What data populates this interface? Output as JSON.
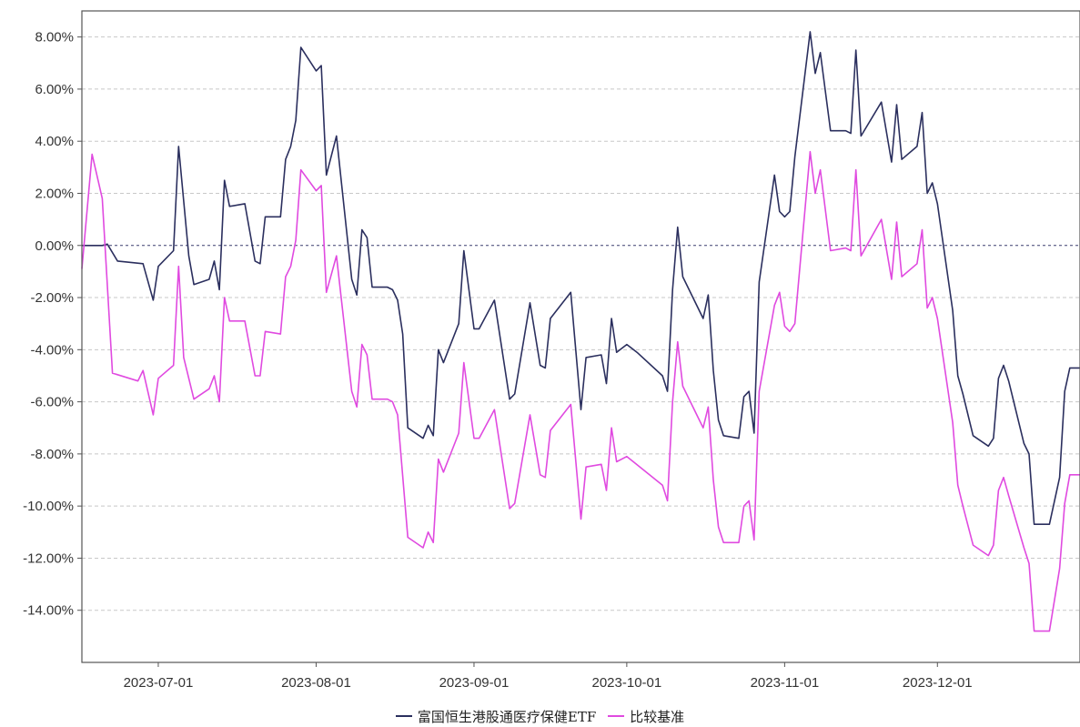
{
  "chart_data": {
    "type": "line",
    "title": "",
    "xlabel": "",
    "ylabel": "",
    "x_range": [
      "2023-06-16",
      "2023-12-29"
    ],
    "ylim": [
      -16,
      9
    ],
    "ytick_values": [
      8,
      6,
      4,
      2,
      0,
      -2,
      -4,
      -6,
      -8,
      -10,
      -12,
      -14
    ],
    "ytick_labels": [
      "8.00%",
      "6.00%",
      "4.00%",
      "2.00%",
      "0.00%",
      "-2.00%",
      "-4.00%",
      "-6.00%",
      "-8.00%",
      "-10.00%",
      "-12.00%",
      "-14.00%"
    ],
    "xtick_labels": [
      "2023-07-01",
      "2023-08-01",
      "2023-09-01",
      "2023-10-01",
      "2023-11-01",
      "2023-12-01"
    ],
    "grid": true,
    "legend_position": "bottom-center",
    "series": [
      {
        "name": "富国恒生港股通医疗保健ETF",
        "color": "#2b2f5e",
        "points": [
          [
            "2023-06-16",
            0.0
          ],
          [
            "2023-06-20",
            0.0
          ],
          [
            "2023-06-21",
            0.05
          ],
          [
            "2023-06-23",
            -0.6
          ],
          [
            "2023-06-28",
            -0.7
          ],
          [
            "2023-06-30",
            -2.1
          ],
          [
            "2023-07-01",
            -0.8
          ],
          [
            "2023-07-04",
            -0.2
          ],
          [
            "2023-07-05",
            3.8
          ],
          [
            "2023-07-07",
            -0.4
          ],
          [
            "2023-07-08",
            -1.5
          ],
          [
            "2023-07-11",
            -1.3
          ],
          [
            "2023-07-12",
            -0.6
          ],
          [
            "2023-07-13",
            -1.7
          ],
          [
            "2023-07-14",
            2.5
          ],
          [
            "2023-07-15",
            1.5
          ],
          [
            "2023-07-18",
            1.6
          ],
          [
            "2023-07-20",
            -0.6
          ],
          [
            "2023-07-21",
            -0.7
          ],
          [
            "2023-07-22",
            1.1
          ],
          [
            "2023-07-25",
            1.1
          ],
          [
            "2023-07-26",
            3.3
          ],
          [
            "2023-07-27",
            3.8
          ],
          [
            "2023-07-28",
            4.8
          ],
          [
            "2023-07-29",
            7.6
          ],
          [
            "2023-08-01",
            6.7
          ],
          [
            "2023-08-02",
            6.9
          ],
          [
            "2023-08-03",
            2.7
          ],
          [
            "2023-08-05",
            4.2
          ],
          [
            "2023-08-08",
            -1.3
          ],
          [
            "2023-08-09",
            -1.9
          ],
          [
            "2023-08-10",
            0.6
          ],
          [
            "2023-08-11",
            0.3
          ],
          [
            "2023-08-12",
            -1.6
          ],
          [
            "2023-08-15",
            -1.6
          ],
          [
            "2023-08-16",
            -1.7
          ],
          [
            "2023-08-17",
            -2.1
          ],
          [
            "2023-08-18",
            -3.4
          ],
          [
            "2023-08-19",
            -7.0
          ],
          [
            "2023-08-22",
            -7.4
          ],
          [
            "2023-08-23",
            -6.9
          ],
          [
            "2023-08-24",
            -7.3
          ],
          [
            "2023-08-25",
            -4.0
          ],
          [
            "2023-08-26",
            -4.5
          ],
          [
            "2023-08-29",
            -3.0
          ],
          [
            "2023-08-30",
            -0.2
          ],
          [
            "2023-09-01",
            -3.2
          ],
          [
            "2023-09-02",
            -3.2
          ],
          [
            "2023-09-05",
            -2.1
          ],
          [
            "2023-09-08",
            -5.9
          ],
          [
            "2023-09-09",
            -5.7
          ],
          [
            "2023-09-12",
            -2.2
          ],
          [
            "2023-09-14",
            -4.6
          ],
          [
            "2023-09-15",
            -4.7
          ],
          [
            "2023-09-16",
            -2.8
          ],
          [
            "2023-09-20",
            -1.8
          ],
          [
            "2023-09-22",
            -6.3
          ],
          [
            "2023-09-23",
            -4.3
          ],
          [
            "2023-09-26",
            -4.2
          ],
          [
            "2023-09-27",
            -5.3
          ],
          [
            "2023-09-28",
            -2.8
          ],
          [
            "2023-09-29",
            -4.1
          ],
          [
            "2023-10-01",
            -3.8
          ],
          [
            "2023-10-03",
            -4.1
          ],
          [
            "2023-10-08",
            -5.0
          ],
          [
            "2023-10-09",
            -5.6
          ],
          [
            "2023-10-10",
            -1.7
          ],
          [
            "2023-10-11",
            0.7
          ],
          [
            "2023-10-12",
            -1.2
          ],
          [
            "2023-10-16",
            -2.8
          ],
          [
            "2023-10-17",
            -1.9
          ],
          [
            "2023-10-18",
            -4.8
          ],
          [
            "2023-10-19",
            -6.7
          ],
          [
            "2023-10-20",
            -7.3
          ],
          [
            "2023-10-23",
            -7.4
          ],
          [
            "2023-10-24",
            -5.8
          ],
          [
            "2023-10-25",
            -5.6
          ],
          [
            "2023-10-26",
            -7.2
          ],
          [
            "2023-10-27",
            -1.4
          ],
          [
            "2023-10-30",
            2.7
          ],
          [
            "2023-10-31",
            1.3
          ],
          [
            "2023-11-01",
            1.1
          ],
          [
            "2023-11-02",
            1.3
          ],
          [
            "2023-11-03",
            3.4
          ],
          [
            "2023-11-06",
            8.2
          ],
          [
            "2023-11-07",
            6.6
          ],
          [
            "2023-11-08",
            7.4
          ],
          [
            "2023-11-10",
            4.4
          ],
          [
            "2023-11-13",
            4.4
          ],
          [
            "2023-11-14",
            4.3
          ],
          [
            "2023-11-15",
            7.5
          ],
          [
            "2023-11-16",
            4.2
          ],
          [
            "2023-11-20",
            5.5
          ],
          [
            "2023-11-22",
            3.2
          ],
          [
            "2023-11-23",
            5.4
          ],
          [
            "2023-11-24",
            3.3
          ],
          [
            "2023-11-27",
            3.8
          ],
          [
            "2023-11-28",
            5.1
          ],
          [
            "2023-11-29",
            2.0
          ],
          [
            "2023-11-30",
            2.4
          ],
          [
            "2023-12-01",
            1.6
          ],
          [
            "2023-12-04",
            -2.5
          ],
          [
            "2023-12-05",
            -5.0
          ],
          [
            "2023-12-06",
            -5.7
          ],
          [
            "2023-12-08",
            -7.3
          ],
          [
            "2023-12-11",
            -7.7
          ],
          [
            "2023-12-12",
            -7.4
          ],
          [
            "2023-12-13",
            -5.1
          ],
          [
            "2023-12-14",
            -4.6
          ],
          [
            "2023-12-15",
            -5.2
          ],
          [
            "2023-12-18",
            -7.6
          ],
          [
            "2023-12-19",
            -8.0
          ],
          [
            "2023-12-20",
            -10.7
          ],
          [
            "2023-12-23",
            -10.7
          ],
          [
            "2023-12-25",
            -8.9
          ],
          [
            "2023-12-26",
            -5.6
          ],
          [
            "2023-12-27",
            -4.7
          ],
          [
            "2023-12-29",
            -4.7
          ]
        ]
      },
      {
        "name": "比较基准",
        "color": "#e04ae0",
        "points": [
          [
            "2023-06-16",
            -0.9
          ],
          [
            "2023-06-18",
            3.5
          ],
          [
            "2023-06-20",
            1.8
          ],
          [
            "2023-06-22",
            -4.9
          ],
          [
            "2023-06-27",
            -5.2
          ],
          [
            "2023-06-28",
            -4.8
          ],
          [
            "2023-06-30",
            -6.5
          ],
          [
            "2023-07-01",
            -5.1
          ],
          [
            "2023-07-04",
            -4.6
          ],
          [
            "2023-07-05",
            -0.8
          ],
          [
            "2023-07-06",
            -4.3
          ],
          [
            "2023-07-08",
            -5.9
          ],
          [
            "2023-07-11",
            -5.5
          ],
          [
            "2023-07-12",
            -5.0
          ],
          [
            "2023-07-13",
            -6.0
          ],
          [
            "2023-07-14",
            -2.0
          ],
          [
            "2023-07-15",
            -2.9
          ],
          [
            "2023-07-18",
            -2.9
          ],
          [
            "2023-07-20",
            -5.0
          ],
          [
            "2023-07-21",
            -5.0
          ],
          [
            "2023-07-22",
            -3.3
          ],
          [
            "2023-07-25",
            -3.4
          ],
          [
            "2023-07-26",
            -1.2
          ],
          [
            "2023-07-27",
            -0.8
          ],
          [
            "2023-07-28",
            0.2
          ],
          [
            "2023-07-29",
            2.9
          ],
          [
            "2023-08-01",
            2.1
          ],
          [
            "2023-08-02",
            2.3
          ],
          [
            "2023-08-03",
            -1.8
          ],
          [
            "2023-08-05",
            -0.4
          ],
          [
            "2023-08-08",
            -5.6
          ],
          [
            "2023-08-09",
            -6.2
          ],
          [
            "2023-08-10",
            -3.8
          ],
          [
            "2023-08-11",
            -4.2
          ],
          [
            "2023-08-12",
            -5.9
          ],
          [
            "2023-08-15",
            -5.9
          ],
          [
            "2023-08-16",
            -6.0
          ],
          [
            "2023-08-17",
            -6.5
          ],
          [
            "2023-08-19",
            -11.2
          ],
          [
            "2023-08-22",
            -11.6
          ],
          [
            "2023-08-23",
            -11.0
          ],
          [
            "2023-08-24",
            -11.4
          ],
          [
            "2023-08-25",
            -8.2
          ],
          [
            "2023-08-26",
            -8.7
          ],
          [
            "2023-08-29",
            -7.2
          ],
          [
            "2023-08-30",
            -4.5
          ],
          [
            "2023-09-01",
            -7.4
          ],
          [
            "2023-09-02",
            -7.4
          ],
          [
            "2023-09-05",
            -6.3
          ],
          [
            "2023-09-08",
            -10.1
          ],
          [
            "2023-09-09",
            -9.9
          ],
          [
            "2023-09-12",
            -6.5
          ],
          [
            "2023-09-14",
            -8.8
          ],
          [
            "2023-09-15",
            -8.9
          ],
          [
            "2023-09-16",
            -7.1
          ],
          [
            "2023-09-20",
            -6.1
          ],
          [
            "2023-09-22",
            -10.5
          ],
          [
            "2023-09-23",
            -8.5
          ],
          [
            "2023-09-26",
            -8.4
          ],
          [
            "2023-09-27",
            -9.4
          ],
          [
            "2023-09-28",
            -7.0
          ],
          [
            "2023-09-29",
            -8.3
          ],
          [
            "2023-10-01",
            -8.1
          ],
          [
            "2023-10-08",
            -9.2
          ],
          [
            "2023-10-09",
            -9.8
          ],
          [
            "2023-10-10",
            -6.0
          ],
          [
            "2023-10-11",
            -3.7
          ],
          [
            "2023-10-12",
            -5.4
          ],
          [
            "2023-10-16",
            -7.0
          ],
          [
            "2023-10-17",
            -6.2
          ],
          [
            "2023-10-18",
            -9.0
          ],
          [
            "2023-10-19",
            -10.8
          ],
          [
            "2023-10-20",
            -11.4
          ],
          [
            "2023-10-23",
            -11.4
          ],
          [
            "2023-10-24",
            -10.0
          ],
          [
            "2023-10-25",
            -9.8
          ],
          [
            "2023-10-26",
            -11.3
          ],
          [
            "2023-10-27",
            -5.6
          ],
          [
            "2023-10-30",
            -2.3
          ],
          [
            "2023-10-31",
            -1.8
          ],
          [
            "2023-11-01",
            -3.1
          ],
          [
            "2023-11-02",
            -3.3
          ],
          [
            "2023-11-03",
            -3.0
          ],
          [
            "2023-11-06",
            3.6
          ],
          [
            "2023-11-07",
            2.0
          ],
          [
            "2023-11-08",
            2.9
          ],
          [
            "2023-11-10",
            -0.2
          ],
          [
            "2023-11-13",
            -0.1
          ],
          [
            "2023-11-14",
            -0.2
          ],
          [
            "2023-11-15",
            2.9
          ],
          [
            "2023-11-16",
            -0.4
          ],
          [
            "2023-11-20",
            1.0
          ],
          [
            "2023-11-22",
            -1.3
          ],
          [
            "2023-11-23",
            0.9
          ],
          [
            "2023-11-24",
            -1.2
          ],
          [
            "2023-11-27",
            -0.7
          ],
          [
            "2023-11-28",
            0.6
          ],
          [
            "2023-11-29",
            -2.4
          ],
          [
            "2023-11-30",
            -2.0
          ],
          [
            "2023-12-01",
            -2.8
          ],
          [
            "2023-12-04",
            -6.8
          ],
          [
            "2023-12-05",
            -9.2
          ],
          [
            "2023-12-06",
            -10.0
          ],
          [
            "2023-12-08",
            -11.5
          ],
          [
            "2023-12-11",
            -11.9
          ],
          [
            "2023-12-12",
            -11.5
          ],
          [
            "2023-12-13",
            -9.4
          ],
          [
            "2023-12-14",
            -8.9
          ],
          [
            "2023-12-15",
            -9.6
          ],
          [
            "2023-12-18",
            -11.6
          ],
          [
            "2023-12-19",
            -12.2
          ],
          [
            "2023-12-20",
            -14.8
          ],
          [
            "2023-12-23",
            -14.8
          ],
          [
            "2023-12-25",
            -12.4
          ],
          [
            "2023-12-26",
            -9.9
          ],
          [
            "2023-12-27",
            -8.8
          ],
          [
            "2023-12-29",
            -8.8
          ]
        ]
      }
    ]
  }
}
